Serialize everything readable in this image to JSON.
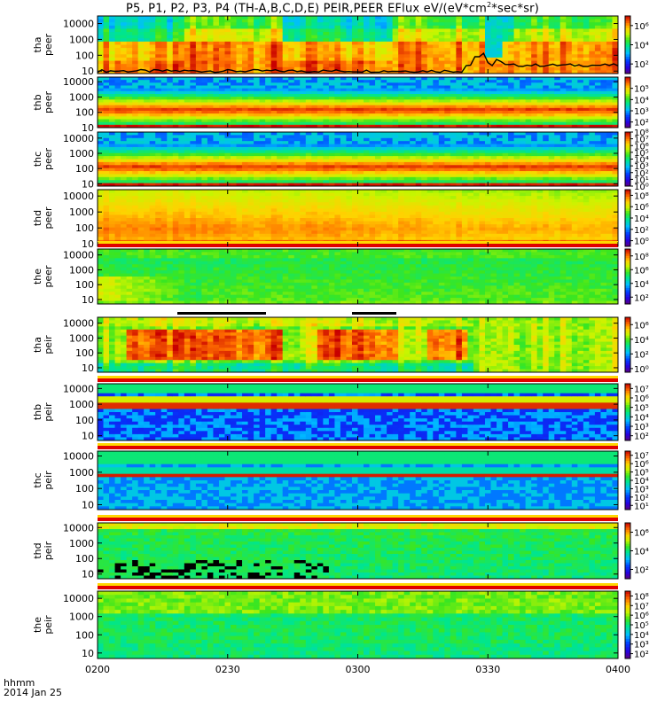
{
  "title": {
    "main": "P5, P1, P2, P3, P4 (TH-A,B,C,D,E) PEIR,PEER EFlux eV/(eV*cm",
    "sup": "2",
    "end": "*sec*sr)"
  },
  "time_axis": {
    "unit_label": "hhmm",
    "date_label": "2014 Jan 25",
    "ticks": [
      "0200",
      "0230",
      "0300",
      "0330",
      "0400"
    ],
    "range_minutes": [
      0,
      120
    ]
  },
  "chart_data": [
    {
      "type": "heatmap",
      "probe": "tha",
      "species": "peer",
      "ylabel": [
        "tha",
        "peer"
      ],
      "yticks": [
        "10",
        "100",
        "1000",
        "10000"
      ],
      "ylim": [
        7,
        30000
      ],
      "yscale": "log",
      "colorbar_ticks": [
        "10²",
        "10⁴",
        "10⁶"
      ],
      "colorbar_exp": [
        2,
        4,
        6
      ],
      "colorbar_range": [
        1,
        7
      ],
      "pattern": "active",
      "has_black_line": true
    },
    {
      "type": "heatmap",
      "probe": "thb",
      "species": "peer",
      "ylabel": [
        "thb",
        "peer"
      ],
      "yticks": [
        "10",
        "100",
        "1000",
        "10000"
      ],
      "ylim": [
        10,
        20000
      ],
      "yscale": "log",
      "colorbar_ticks": [
        "10²",
        "10³",
        "10⁴",
        "10⁵"
      ],
      "colorbar_exp": [
        2,
        3,
        4,
        5
      ],
      "colorbar_range": [
        1.5,
        6
      ],
      "pattern": "band_quiet"
    },
    {
      "type": "heatmap",
      "probe": "thc",
      "species": "peer",
      "ylabel": [
        "thc",
        "peer"
      ],
      "yticks": [
        "10",
        "100",
        "1000",
        "10000"
      ],
      "ylim": [
        7,
        25000
      ],
      "yscale": "log",
      "colorbar_ticks": [
        "10⁰",
        "10¹",
        "10²",
        "10³",
        "10⁴",
        "10⁵",
        "10⁶",
        "10⁷",
        "10⁸"
      ],
      "colorbar_exp": [
        0,
        1,
        2,
        3,
        4,
        5,
        6,
        7,
        8
      ],
      "colorbar_range": [
        0,
        8
      ],
      "pattern": "band_quiet"
    },
    {
      "type": "heatmap",
      "probe": "thd",
      "species": "peer",
      "ylabel": [
        "thd",
        "peer"
      ],
      "yticks": [
        "10",
        "100",
        "1000",
        "10000"
      ],
      "ylim": [
        7,
        25000
      ],
      "yscale": "log",
      "colorbar_ticks": [
        "10⁰",
        "10²",
        "10⁴",
        "10⁶",
        "10⁸"
      ],
      "colorbar_exp": [
        0,
        2,
        4,
        6,
        8
      ],
      "colorbar_range": [
        -1,
        9
      ],
      "pattern": "warm_smooth"
    },
    {
      "type": "heatmap",
      "probe": "the",
      "species": "peer",
      "ylabel": [
        "the",
        "peer"
      ],
      "yticks": [
        "10",
        "100",
        "1000",
        "10000"
      ],
      "ylim": [
        5,
        25000
      ],
      "yscale": "log",
      "colorbar_ticks": [
        "10²",
        "10⁴",
        "10⁶",
        "10⁸"
      ],
      "colorbar_exp": [
        2,
        4,
        6,
        8
      ],
      "colorbar_range": [
        1,
        9
      ],
      "pattern": "green_fade",
      "has_red_strip": true
    },
    {
      "type": "heatmap",
      "probe": "tha",
      "species": "peir",
      "ylabel": [
        "tha",
        "peir"
      ],
      "yticks": [
        "10",
        "100",
        "1000",
        "10000"
      ],
      "ylim": [
        5,
        25000
      ],
      "yscale": "log",
      "colorbar_ticks": [
        "10⁰",
        "10²",
        "10⁴",
        "10⁶"
      ],
      "colorbar_exp": [
        0,
        2,
        4,
        6
      ],
      "colorbar_range": [
        -0.5,
        7
      ],
      "pattern": "active_ion",
      "has_top_bars": true
    },
    {
      "type": "heatmap",
      "probe": "thb",
      "species": "peir",
      "ylabel": [
        "thb",
        "peir"
      ],
      "yticks": [
        "10",
        "100",
        "1000",
        "10000"
      ],
      "ylim": [
        5,
        20000
      ],
      "yscale": "log",
      "colorbar_ticks": [
        "10²",
        "10³",
        "10⁴",
        "10⁵",
        "10⁶",
        "10⁷"
      ],
      "colorbar_exp": [
        2,
        3,
        4,
        5,
        6,
        7
      ],
      "colorbar_range": [
        1.5,
        7.5
      ],
      "pattern": "ion_band",
      "has_red_strip": true
    },
    {
      "type": "heatmap",
      "probe": "thc",
      "species": "peir",
      "ylabel": [
        "thc",
        "peir"
      ],
      "yticks": [
        "10",
        "100",
        "1000",
        "10000"
      ],
      "ylim": [
        5,
        20000
      ],
      "yscale": "log",
      "colorbar_ticks": [
        "10¹",
        "10²",
        "10³",
        "10⁴",
        "10⁵",
        "10⁶",
        "10⁷"
      ],
      "colorbar_exp": [
        1,
        2,
        3,
        4,
        5,
        6,
        7
      ],
      "colorbar_range": [
        0.5,
        7.5
      ],
      "pattern": "ion_band2",
      "has_red_strip": true
    },
    {
      "type": "heatmap",
      "probe": "thd",
      "species": "peir",
      "ylabel": [
        "thd",
        "peir"
      ],
      "yticks": [
        "10",
        "100",
        "1000",
        "10000"
      ],
      "ylim": [
        5,
        20000
      ],
      "yscale": "log",
      "colorbar_ticks": [
        "10²",
        "10⁴",
        "10⁶"
      ],
      "colorbar_exp": [
        2,
        4,
        6
      ],
      "colorbar_range": [
        1,
        7
      ],
      "pattern": "ion_green_dark",
      "has_red_strip": true
    },
    {
      "type": "heatmap",
      "probe": "the",
      "species": "peir",
      "ylabel": [
        "the",
        "peir"
      ],
      "yticks": [
        "10",
        "100",
        "1000",
        "10000"
      ],
      "ylim": [
        5,
        25000
      ],
      "yscale": "log",
      "colorbar_ticks": [
        "10²",
        "10³",
        "10⁴",
        "10⁵",
        "10⁶",
        "10⁷",
        "10⁸"
      ],
      "colorbar_exp": [
        2,
        3,
        4,
        5,
        6,
        7,
        8
      ],
      "colorbar_range": [
        1.5,
        8.5
      ],
      "pattern": "ion_green",
      "has_red_strip": true
    }
  ]
}
